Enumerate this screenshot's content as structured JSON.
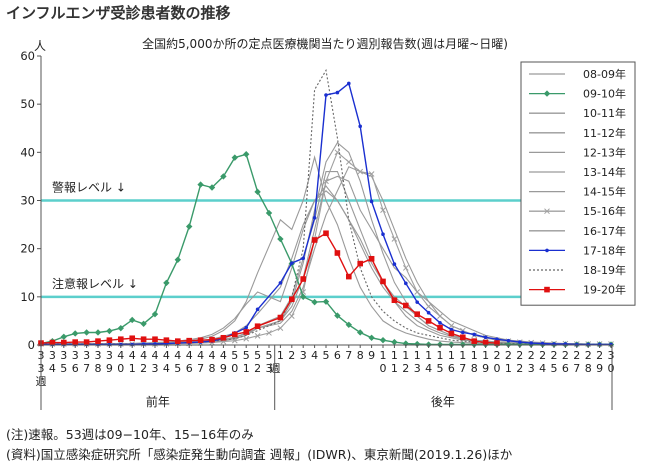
{
  "title": "インフルエンザ受診患者数の推移",
  "notes": {
    "note1": "(注)速報。53週は09−10年、15−16年のみ",
    "note2": "(資料)国立感染症研究所「感染症発生動向調査 週報」(IDWR)、東京新聞(2019.1.26)ほか"
  },
  "chart_data": {
    "type": "line",
    "title": "全国約5,000か所の定点医療機関当たり週別報告数(週は月曜~日曜)",
    "ylabel": "人",
    "ylim": [
      0,
      60
    ],
    "yticks": [
      0,
      10,
      20,
      30,
      40,
      50,
      60
    ],
    "grid": false,
    "legend_position": "right",
    "x_section_labels": [
      "前年",
      "後年"
    ],
    "week_label": "週",
    "categories": [
      "33",
      "34",
      "35",
      "36",
      "37",
      "38",
      "39",
      "40",
      "41",
      "42",
      "43",
      "44",
      "45",
      "46",
      "47",
      "48",
      "49",
      "50",
      "51",
      "52",
      "53",
      "1",
      "2",
      "3",
      "4",
      "5",
      "6",
      "7",
      "8",
      "9",
      "10",
      "11",
      "12",
      "13",
      "14",
      "15",
      "16",
      "17",
      "18",
      "19",
      "20",
      "21",
      "22",
      "23",
      "24",
      "25",
      "26",
      "27",
      "28",
      "29",
      "30"
    ],
    "reference_lines": [
      {
        "label": "警報レベル ↓",
        "value": 30,
        "color": "#5ccfcc"
      },
      {
        "label": "注意報レベル ↓",
        "value": 10,
        "color": "#5ccfcc"
      }
    ],
    "series": [
      {
        "name": "08-09年",
        "color": "#9a9a9a",
        "values": [
          0.2,
          0.2,
          0.2,
          0.2,
          0.2,
          0.2,
          0.2,
          0.3,
          0.3,
          0.3,
          0.4,
          0.4,
          0.5,
          0.6,
          0.7,
          0.9,
          1.2,
          1.6,
          2.3,
          3.5,
          null,
          4.5,
          7.0,
          12.0,
          20.0,
          27.0,
          32.0,
          37.0,
          36.0,
          35.0,
          30.0,
          24.0,
          18.0,
          13.0,
          9.0,
          6.0,
          4.0,
          3.0,
          2.0,
          1.5,
          1.0,
          0.8,
          0.6,
          0.5,
          0.4,
          0.3,
          0.3,
          0.2,
          0.2,
          0.2,
          0.2
        ]
      },
      {
        "name": "09-10年",
        "color": "#3a9a6a",
        "marker": "diamond",
        "values": [
          0.3,
          0.8,
          1.7,
          2.4,
          2.6,
          2.6,
          2.9,
          3.5,
          5.2,
          4.4,
          6.4,
          12.9,
          17.7,
          24.6,
          33.3,
          32.7,
          35.0,
          38.9,
          39.6,
          31.8,
          27.4,
          22.0,
          16.9,
          10.0,
          8.9,
          9.0,
          6.1,
          4.2,
          2.6,
          1.5,
          1.0,
          0.6,
          0.3,
          0.2,
          0.1,
          0.1,
          0.1,
          0.1,
          0.1,
          0.1,
          0.1,
          0.1,
          0.1,
          0.1,
          0.1,
          0.1,
          0.1,
          0.1,
          0.1,
          0.1,
          0.1
        ]
      },
      {
        "name": "10-11年",
        "color": "#9a9a9a",
        "values": [
          0.3,
          0.3,
          0.3,
          0.3,
          0.3,
          0.3,
          0.3,
          0.3,
          0.3,
          0.4,
          0.4,
          0.5,
          0.6,
          0.7,
          0.9,
          1.2,
          1.8,
          2.5,
          4.0,
          6.5,
          null,
          12.0,
          18.0,
          25.0,
          30.0,
          32.0,
          30.0,
          26.0,
          22.0,
          17.0,
          13.0,
          10.0,
          8.0,
          6.0,
          4.0,
          3.0,
          2.0,
          1.5,
          1.0,
          0.8,
          0.6,
          0.5,
          0.4,
          0.3,
          0.3,
          0.3,
          0.2,
          0.2,
          0.2,
          0.2,
          0.2
        ]
      },
      {
        "name": "11-12年",
        "color": "#9a9a9a",
        "values": [
          0.2,
          0.2,
          0.2,
          0.2,
          0.2,
          0.2,
          0.2,
          0.2,
          0.2,
          0.3,
          0.3,
          0.3,
          0.4,
          0.5,
          0.6,
          0.8,
          1.1,
          1.6,
          2.5,
          3.5,
          null,
          5.0,
          9.0,
          17.0,
          28.0,
          38.0,
          42.0,
          40.0,
          34.0,
          26.0,
          19.0,
          13.0,
          9.0,
          6.0,
          4.0,
          3.0,
          2.0,
          1.5,
          1.0,
          0.8,
          0.6,
          0.5,
          0.4,
          0.3,
          0.3,
          0.2,
          0.2,
          0.2,
          0.2,
          0.2,
          0.2
        ]
      },
      {
        "name": "12-13年",
        "color": "#9a9a9a",
        "values": [
          0.2,
          0.2,
          0.2,
          0.2,
          0.2,
          0.2,
          0.2,
          0.2,
          0.2,
          0.2,
          0.3,
          0.3,
          0.3,
          0.4,
          0.5,
          0.7,
          1.0,
          1.5,
          2.5,
          4.0,
          null,
          6.0,
          10.0,
          18.0,
          26.0,
          36.0,
          36.0,
          30.0,
          24.0,
          18.0,
          13.0,
          9.0,
          6.0,
          4.0,
          3.0,
          2.0,
          1.5,
          1.0,
          0.8,
          0.6,
          0.5,
          0.4,
          0.3,
          0.3,
          0.2,
          0.2,
          0.2,
          0.2,
          0.2,
          0.2,
          0.2
        ]
      },
      {
        "name": "13-14年",
        "color": "#9a9a9a",
        "values": [
          0.2,
          0.2,
          0.2,
          0.2,
          0.2,
          0.2,
          0.2,
          0.2,
          0.2,
          0.2,
          0.3,
          0.3,
          0.3,
          0.4,
          0.5,
          0.6,
          0.9,
          1.3,
          2.0,
          3.5,
          null,
          5.0,
          8.0,
          14.0,
          24.0,
          34.0,
          35.0,
          34.0,
          28.0,
          24.0,
          20.0,
          16.0,
          14.0,
          11.0,
          9.0,
          7.0,
          5.0,
          4.0,
          3.0,
          2.0,
          1.5,
          1.0,
          0.8,
          0.6,
          0.5,
          0.4,
          0.3,
          0.3,
          0.2,
          0.2,
          0.2
        ]
      },
      {
        "name": "14-15年",
        "color": "#9a9a9a",
        "values": [
          0.2,
          0.2,
          0.2,
          0.2,
          0.2,
          0.2,
          0.2,
          0.2,
          0.3,
          0.3,
          0.4,
          0.5,
          0.6,
          0.8,
          1.2,
          1.8,
          3.0,
          5.0,
          9.0,
          15.0,
          null,
          26.0,
          24.0,
          30.0,
          39.0,
          30.0,
          25.0,
          18.0,
          12.0,
          8.0,
          5.0,
          3.5,
          2.5,
          1.8,
          1.2,
          0.8,
          0.6,
          0.5,
          0.4,
          0.3,
          0.3,
          0.2,
          0.2,
          0.2,
          0.2,
          0.2,
          0.2,
          0.2,
          0.2,
          0.2,
          0.2
        ]
      },
      {
        "name": "15-16年",
        "color": "#a0a0a0",
        "marker": "x",
        "values": [
          0.2,
          0.2,
          0.2,
          0.2,
          0.2,
          0.2,
          0.2,
          0.2,
          0.2,
          0.2,
          0.2,
          0.2,
          0.3,
          0.3,
          0.4,
          0.5,
          0.7,
          0.9,
          1.3,
          1.9,
          2.5,
          3.5,
          6.0,
          11.0,
          22.0,
          34.0,
          40.0,
          38.0,
          36.0,
          35.5,
          28.0,
          22.0,
          16.0,
          11.0,
          8.0,
          6.0,
          4.0,
          3.0,
          2.0,
          1.5,
          1.0,
          0.8,
          0.6,
          0.5,
          0.4,
          0.3,
          0.3,
          0.2,
          0.2,
          0.2,
          0.2
        ]
      },
      {
        "name": "16-17年",
        "color": "#9a9a9a",
        "values": [
          0.2,
          0.2,
          0.2,
          0.2,
          0.2,
          0.2,
          0.2,
          0.3,
          0.3,
          0.4,
          0.5,
          0.6,
          0.8,
          1.1,
          1.5,
          2.2,
          3.5,
          5.5,
          8.5,
          11.0,
          null,
          9.0,
          16.0,
          24.0,
          30.0,
          33.0,
          30.0,
          26.0,
          21.0,
          16.0,
          12.0,
          9.0,
          7.0,
          5.0,
          3.5,
          2.5,
          1.8,
          1.2,
          0.8,
          0.6,
          0.5,
          0.4,
          0.3,
          0.3,
          0.2,
          0.2,
          0.2,
          0.2,
          0.2,
          0.2,
          0.2
        ]
      },
      {
        "name": "17-18年",
        "color": "#1a2fd0",
        "marker": "dot",
        "values": [
          0.1,
          0.1,
          0.1,
          0.1,
          0.1,
          0.1,
          0.1,
          0.1,
          0.1,
          0.2,
          0.2,
          0.3,
          0.4,
          0.5,
          0.6,
          0.8,
          1.4,
          2.5,
          3.6,
          7.4,
          null,
          12.9,
          17.0,
          18.0,
          26.4,
          51.9,
          52.4,
          54.3,
          45.4,
          29.8,
          23.0,
          16.8,
          12.8,
          8.9,
          6.7,
          4.6,
          3.2,
          2.6,
          2.2,
          1.6,
          1.2,
          0.9,
          0.6,
          0.4,
          0.3,
          0.2,
          0.2,
          0.1,
          0.1,
          0.1,
          0.1
        ]
      },
      {
        "name": "18-19年",
        "color": "#666666",
        "dashed": true,
        "values": [
          0.2,
          0.2,
          0.2,
          0.2,
          0.2,
          0.2,
          0.2,
          0.2,
          0.2,
          0.2,
          0.3,
          0.3,
          0.4,
          0.5,
          0.6,
          0.8,
          1.0,
          1.3,
          2.0,
          3.0,
          null,
          5.0,
          10.0,
          20.0,
          53.0,
          57.0,
          43.0,
          26.0,
          16.0,
          10.0,
          7.0,
          5.0,
          3.5,
          2.5,
          2.0,
          1.5,
          1.0,
          0.8,
          0.6,
          0.5,
          0.4,
          0.3,
          0.3,
          0.2,
          0.2,
          0.2,
          0.2,
          0.2,
          0.2,
          0.2,
          0.2
        ]
      },
      {
        "name": "19-20年",
        "color": "#e01010",
        "marker": "square",
        "values": [
          0.4,
          0.5,
          0.5,
          0.6,
          0.6,
          0.8,
          1.0,
          1.2,
          1.4,
          1.2,
          1.2,
          1.0,
          0.8,
          0.9,
          1.0,
          1.1,
          1.5,
          2.2,
          2.7,
          3.9,
          null,
          5.7,
          9.5,
          13.7,
          21.8,
          23.2,
          19.1,
          14.2,
          16.9,
          17.9,
          13.2,
          9.3,
          8.2,
          6.4,
          5.0,
          3.6,
          2.4,
          1.6,
          0.8,
          0.5,
          0.4,
          null,
          null,
          null,
          null,
          null,
          null,
          null,
          null,
          null,
          null
        ]
      }
    ]
  }
}
